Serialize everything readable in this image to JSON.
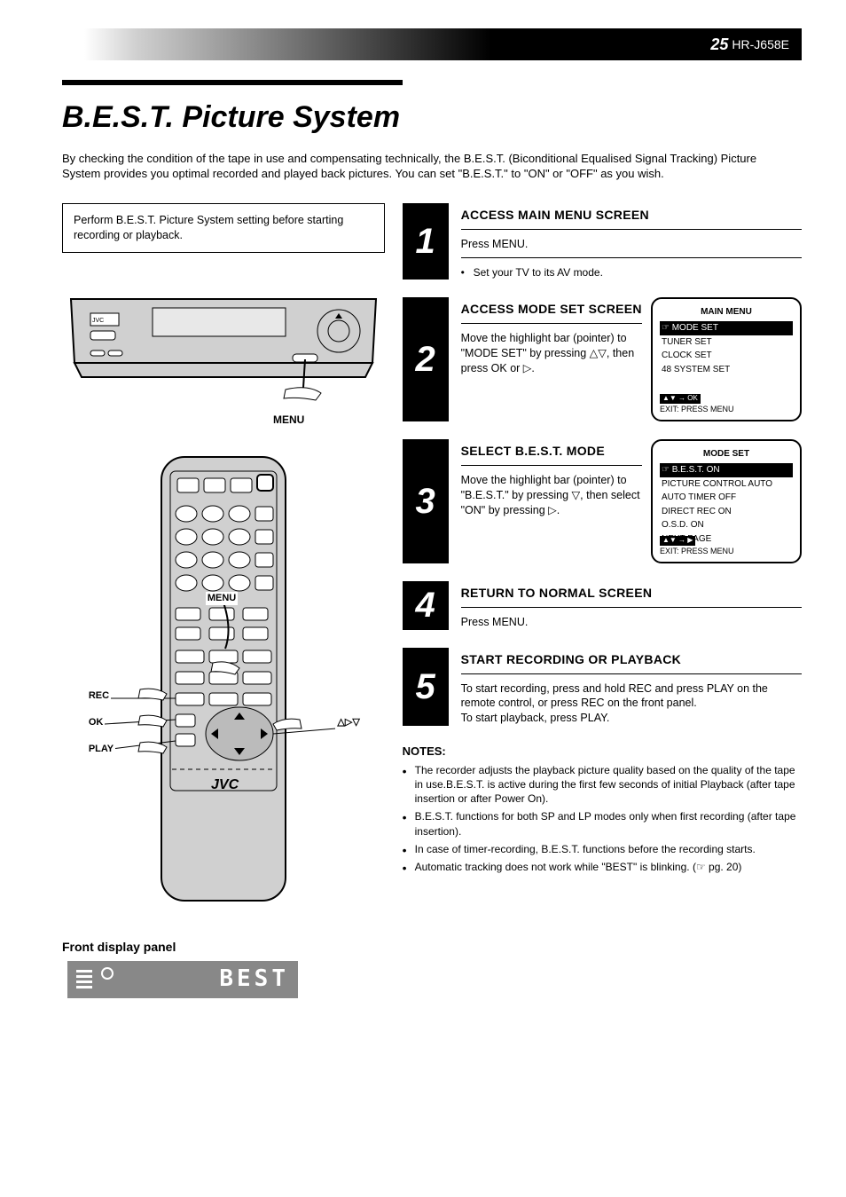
{
  "header": {
    "page_number": "25",
    "model_code": "HR-J658E"
  },
  "title_rule_color": "#000000",
  "title": "B.E.S.T. Picture System",
  "intro": "By checking the condition of the tape in use and compensating technically, the B.E.S.T. (Biconditional Equalised Signal Tracking) Picture System provides you optimal recorded and played back pictures. You can set \"B.E.S.T.\" to \"ON\" or \"OFF\" as you wish.",
  "left": {
    "note": "Perform B.E.S.T. Picture System setting before starting recording or playback.",
    "vcr_callout": "MENU",
    "remote_callouts": {
      "top_center": "MENU",
      "left_upper": "REC",
      "left_mid": "OK",
      "left_lower": "PLAY",
      "right": "△▷▽"
    },
    "display_label": "Front display panel",
    "vfd_text": "BEST"
  },
  "steps": [
    {
      "num": "1",
      "heading": "ACCESS MAIN MENU SCREEN",
      "body": "Press MENU.",
      "note": "Set your TV to its AV mode.",
      "screen": null
    },
    {
      "num": "2",
      "heading": "ACCESS MODE SET SCREEN",
      "body_html": "Move the highlight bar (pointer) to \"MODE SET\" by pressing <span class='tri'>△▽</span>, then press OK or <span class='tri'>▷</span>.",
      "screen": {
        "title": "MAIN MENU",
        "rows": [
          {
            "text": "☞ MODE SET",
            "sel": true
          },
          {
            "text": "   TUNER SET",
            "sel": false
          },
          {
            "text": "   CLOCK SET",
            "sel": false
          },
          {
            "text": "   48 SYSTEM SET",
            "sel": false
          }
        ],
        "footer_left": "▲▼  →  OK",
        "footer_right": "EXIT: PRESS MENU"
      }
    },
    {
      "num": "3",
      "heading": "SELECT B.E.S.T. MODE",
      "body_html": "Move the highlight bar (pointer) to \"B.E.S.T.\" by pressing <span class='tri'>▽</span>, then select \"ON\" by pressing <span class='tri'>▷</span>.",
      "screen": {
        "title": "MODE SET",
        "rows": [
          {
            "text": "☞ B.E.S.T.        ON",
            "sel": true
          },
          {
            "text": "   PICTURE CONTROL  AUTO",
            "sel": false
          },
          {
            "text": "   AUTO TIMER       OFF",
            "sel": false
          },
          {
            "text": "   DIRECT REC       ON",
            "sel": false
          },
          {
            "text": "   O.S.D.           ON",
            "sel": false
          },
          {
            "text": "   NEXT PAGE",
            "sel": false
          }
        ],
        "footer_left": "▲▼  →  ▶",
        "footer_right": "EXIT: PRESS MENU"
      }
    },
    {
      "num": "4",
      "heading": "RETURN TO NORMAL SCREEN",
      "body": "Press MENU.",
      "screen": null
    },
    {
      "num": "5",
      "heading": "START RECORDING OR PLAYBACK",
      "body": "To start recording, press and hold REC and press PLAY on the remote control, or press REC on the front panel.\nTo start playback, press PLAY.",
      "screen": null
    }
  ],
  "notes": {
    "heading": "NOTES:",
    "items": [
      "The recorder adjusts the playback picture quality based on the quality of the tape in use.B.E.S.T. is active during the first few seconds of initial Playback (after tape insertion or after Power On).",
      "B.E.S.T. functions for both SP and LP modes only when first recording (after tape insertion).",
      "In case of timer-recording, B.E.S.T. functions before the recording starts.",
      "Automatic tracking does not work while \"BEST\" is blinking. (☞ pg. 20)"
    ]
  },
  "colors": {
    "dark": "#000000",
    "grey_fill": "#d0d0d0",
    "vfd_bg": "#888888"
  }
}
